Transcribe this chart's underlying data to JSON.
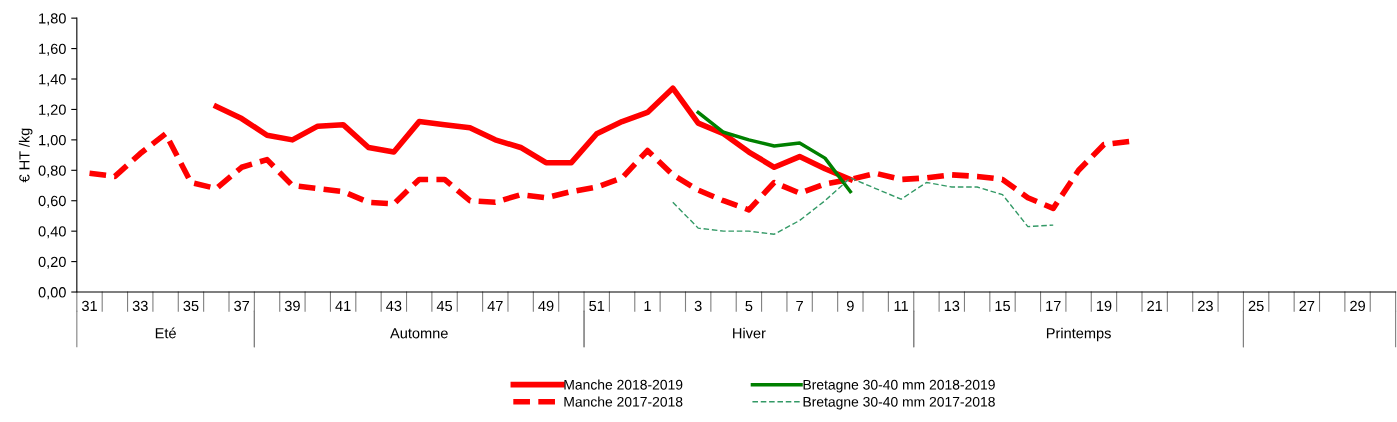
{
  "chart_data": {
    "type": "line",
    "ylabel": "€ HT /kg",
    "categories": [
      "31",
      null,
      "33",
      null,
      "35",
      null,
      "37",
      null,
      "39",
      null,
      "41",
      null,
      "43",
      null,
      "45",
      null,
      "47",
      null,
      "49",
      null,
      "51",
      null,
      "1",
      null,
      "3",
      null,
      "5",
      null,
      "7",
      null,
      "9",
      null,
      "11",
      null,
      "13",
      null,
      "15",
      null,
      "17",
      null,
      "19",
      null,
      "21",
      null,
      "23",
      null,
      "25",
      null,
      "27",
      null,
      "29",
      null
    ],
    "series": [
      {
        "name": "Manche 2018-2019",
        "color": "#ff0000",
        "line_style": "solid",
        "values": [
          null,
          null,
          null,
          null,
          null,
          1.22,
          1.14,
          1.03,
          1.0,
          1.09,
          1.1,
          0.95,
          0.92,
          1.12,
          1.1,
          1.08,
          1.0,
          0.95,
          0.85,
          0.85,
          1.04,
          1.12,
          1.18,
          1.34,
          1.11,
          1.04,
          0.92,
          0.82,
          0.89,
          0.81,
          0.74,
          null,
          null,
          null,
          null,
          null,
          null,
          null,
          null,
          null,
          null,
          null,
          null,
          null,
          null,
          null,
          null,
          null,
          null,
          null,
          null,
          null
        ]
      },
      {
        "name": "Manche 2017-2018",
        "color": "#ff0000",
        "line_style": "dashed",
        "values": [
          0.78,
          0.76,
          0.91,
          1.04,
          0.72,
          0.68,
          0.82,
          0.87,
          0.7,
          0.68,
          0.66,
          0.59,
          0.58,
          0.74,
          0.74,
          0.6,
          0.59,
          0.64,
          0.62,
          0.66,
          0.69,
          0.75,
          0.93,
          0.77,
          0.67,
          0.6,
          0.54,
          0.72,
          0.65,
          0.71,
          0.74,
          0.78,
          0.74,
          0.75,
          0.77,
          0.76,
          0.74,
          0.62,
          0.55,
          0.8,
          0.97,
          0.99,
          null,
          null,
          null,
          null,
          null,
          null,
          null,
          null,
          null,
          null
        ]
      },
      {
        "name": "Bretagne 30-40 mm 2018-2019",
        "color": "#008000",
        "line_style": "solid",
        "values": [
          null,
          null,
          null,
          null,
          null,
          null,
          null,
          null,
          null,
          null,
          null,
          null,
          null,
          null,
          null,
          null,
          null,
          null,
          null,
          null,
          null,
          null,
          null,
          null,
          1.18,
          1.05,
          1.0,
          0.96,
          0.98,
          0.88,
          0.66,
          null,
          null,
          null,
          null,
          null,
          null,
          null,
          null,
          null,
          null,
          null,
          null,
          null,
          null,
          null,
          null,
          null,
          null,
          null,
          null,
          null
        ]
      },
      {
        "name": "Bretagne 30-40 mm 2017-2018",
        "color": "#339966",
        "line_style": "dashed",
        "values": [
          null,
          null,
          null,
          null,
          null,
          null,
          null,
          null,
          null,
          null,
          null,
          null,
          null,
          null,
          null,
          null,
          null,
          null,
          null,
          null,
          null,
          null,
          null,
          0.59,
          0.42,
          0.4,
          0.4,
          0.38,
          0.47,
          0.6,
          0.75,
          0.68,
          0.61,
          0.72,
          0.69,
          0.69,
          0.64,
          0.43,
          0.44,
          null,
          null,
          null,
          null,
          null,
          null,
          null,
          null,
          null,
          null,
          null,
          null,
          null
        ]
      }
    ],
    "ylim": [
      0,
      1.8
    ],
    "yticks": [
      {
        "value": 0,
        "label": "0,00"
      },
      {
        "value": 0.2,
        "label": "0,20"
      },
      {
        "value": 0.4,
        "label": "0,40"
      },
      {
        "value": 0.6,
        "label": "0,60"
      },
      {
        "value": 0.8,
        "label": "0,80"
      },
      {
        "value": 1.0,
        "label": "1,00"
      },
      {
        "value": 1.2,
        "label": "1,20"
      },
      {
        "value": 1.4,
        "label": "1,40"
      },
      {
        "value": 1.6,
        "label": "1,60"
      },
      {
        "value": 1.8,
        "label": "1,80"
      }
    ],
    "annotations": [
      "Eté",
      "Automne",
      "Hiver",
      "Printemps"
    ],
    "grid": false,
    "legend": "bottom",
    "marker": "none"
  }
}
